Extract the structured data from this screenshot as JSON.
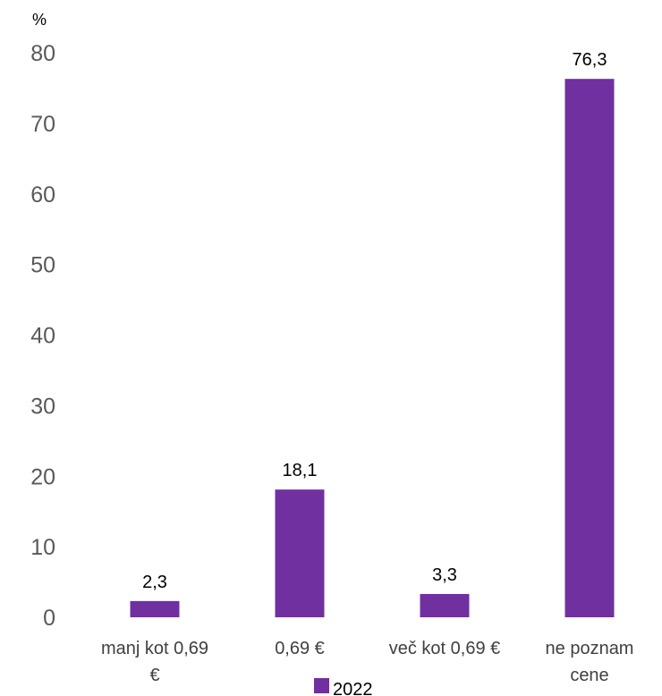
{
  "chart_data": {
    "type": "bar",
    "unit_label": "%",
    "categories": [
      [
        "manj kot 0,69",
        "€"
      ],
      [
        "0,69 €"
      ],
      [
        "več kot 0,69 €"
      ],
      [
        "ne poznam",
        "cene"
      ]
    ],
    "series": [
      {
        "name": "2022",
        "color": "#7030A0",
        "values": [
          2.3,
          18.1,
          3.3,
          76.3
        ],
        "labels": [
          "2,3",
          "18,1",
          "3,3",
          "76,3"
        ]
      }
    ],
    "ylim": [
      0,
      80
    ],
    "yticks": [
      0,
      10,
      20,
      30,
      40,
      50,
      60,
      70,
      80
    ],
    "grid": false,
    "legend_position": "bottom"
  }
}
